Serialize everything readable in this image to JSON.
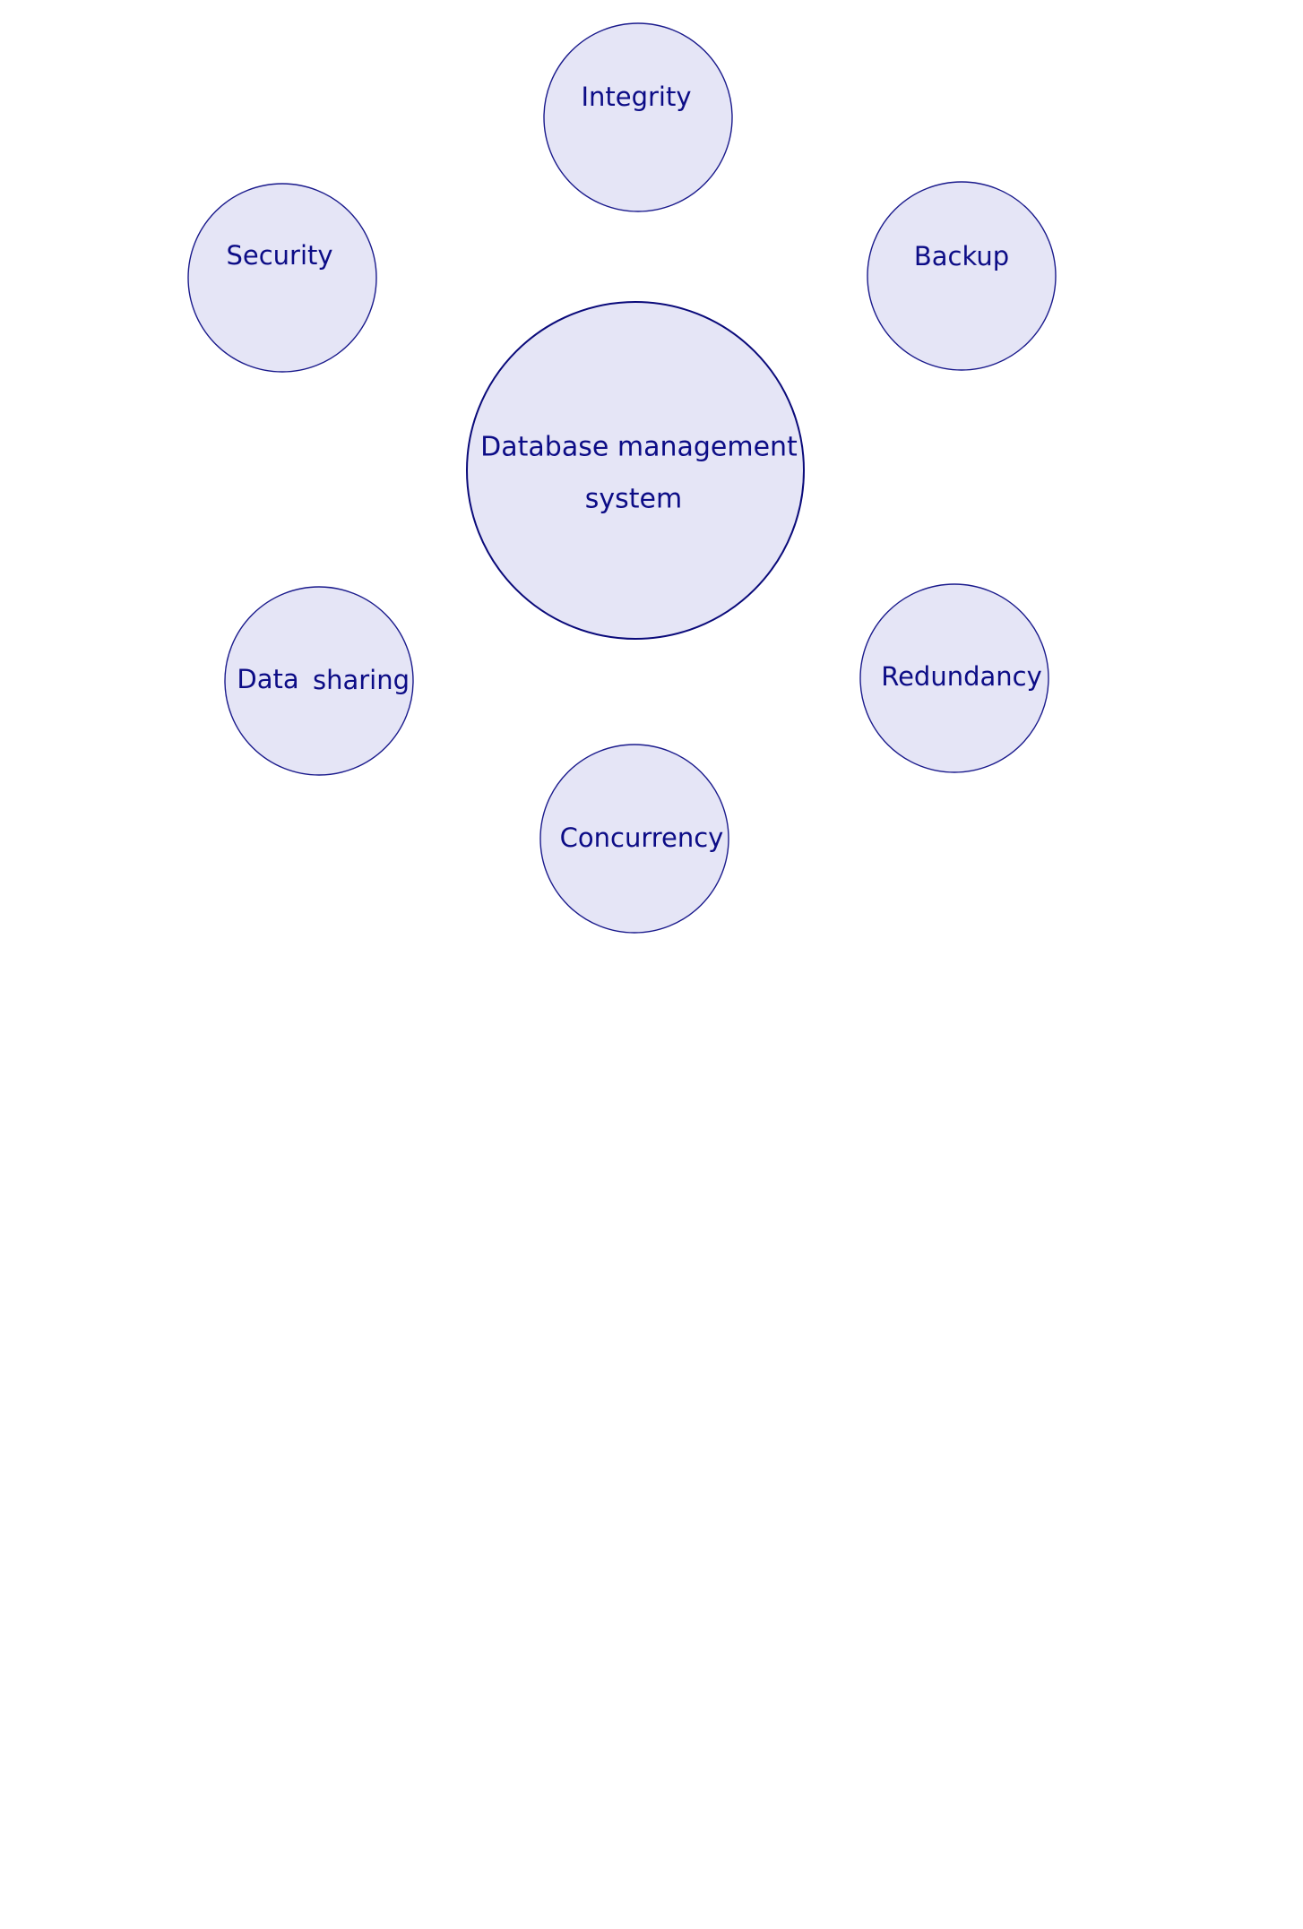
{
  "diagram": {
    "colors": {
      "node_fill": "#e5e5f6",
      "node_stroke": "#1a1a8c",
      "text": "#0c0c86",
      "background": "#ffffff"
    },
    "central": {
      "line1": "Database management",
      "line2": "system"
    },
    "nodes": {
      "integrity": "Integrity",
      "security": "Security",
      "backup": "Backup",
      "data_sharing_word1": "Data",
      "data_sharing_word2": "sharing",
      "redundancy": "Redundancy",
      "concurrency": "Concurrency"
    }
  }
}
